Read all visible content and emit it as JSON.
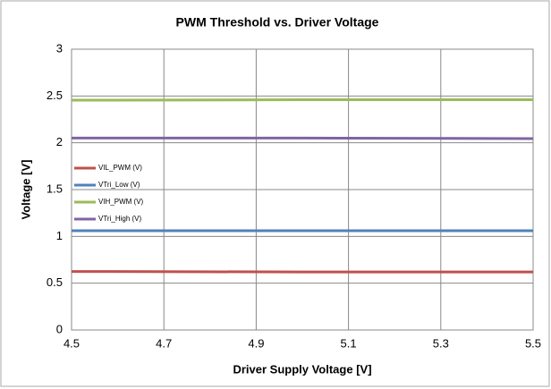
{
  "chart_data": {
    "type": "line",
    "title": "PWM Threshold vs. Driver Voltage",
    "xlabel": "Driver Supply  Voltage  [V]",
    "ylabel": "Voltage [V]",
    "x": [
      4.5,
      5.0,
      5.5
    ],
    "series": [
      {
        "name": "VIL_PWM (V)",
        "color": "#c0504d",
        "values": [
          0.625,
          0.62,
          0.62
        ]
      },
      {
        "name": "VTri_Low (V)",
        "color": "#4f81bd",
        "values": [
          1.06,
          1.06,
          1.06
        ]
      },
      {
        "name": "VIH_PWM (V)",
        "color": "#9bbb59",
        "values": [
          2.455,
          2.46,
          2.46
        ]
      },
      {
        "name": "VTri_High (V)",
        "color": "#8064a2",
        "values": [
          2.05,
          2.05,
          2.045
        ]
      }
    ],
    "xlim": [
      4.5,
      5.5
    ],
    "xticks": [
      4.5,
      4.7,
      4.9,
      5.1,
      5.3,
      5.5
    ],
    "ylim": [
      0,
      3
    ],
    "yticks": [
      0,
      0.5,
      1,
      1.5,
      2,
      2.5,
      3
    ],
    "grid": true,
    "legend": "left"
  }
}
